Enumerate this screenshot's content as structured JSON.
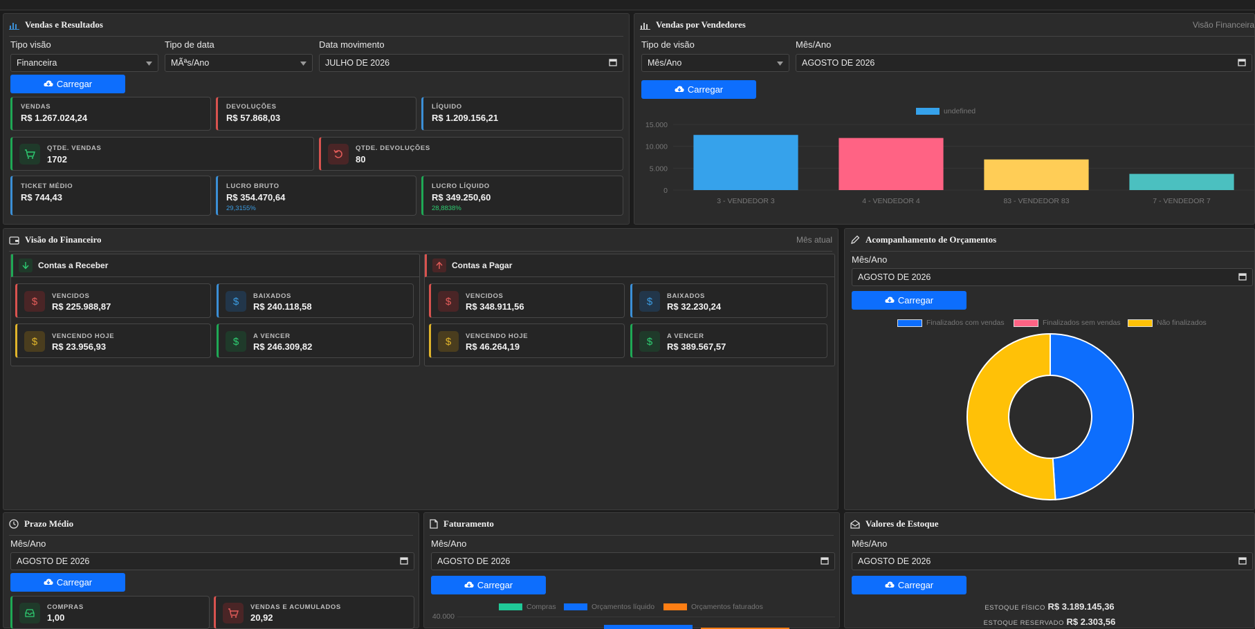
{
  "vendas": {
    "title": "Vendas e Resultados",
    "tipo_visao_label": "Tipo visão",
    "tipo_visao_value": "Financeira",
    "tipo_data_label": "Tipo de data",
    "tipo_data_value": "MÃªs/Ano",
    "data_mov_label": "Data movimento",
    "data_mov_value": "JULHO DE 2026",
    "button": "Carregar",
    "kpi": {
      "vendas_k": "VENDAS",
      "vendas_v": "R$ 1.267.024,24",
      "devol_k": "DEVOLUÇÕES",
      "devol_v": "R$ 57.868,03",
      "liquido_k": "LÍQUIDO",
      "liquido_v": "R$ 1.209.156,21",
      "qtde_vendas_k": "QTDE. VENDAS",
      "qtde_vendas_v": "1702",
      "qtde_devol_k": "QTDE. DEVOLUÇÕES",
      "qtde_devol_v": "80",
      "ticket_k": "TICKET MÉDIO",
      "ticket_v": "R$ 744,43",
      "lucro_bruto_k": "LUCRO BRUTO",
      "lucro_bruto_v": "R$ 354.470,64",
      "lucro_bruto_p": "29,3155%",
      "lucro_liq_k": "LUCRO LÍQUIDO",
      "lucro_liq_v": "R$ 349.250,60",
      "lucro_liq_p": "28,8838%"
    }
  },
  "vendedores": {
    "title": "Vendas por Vendedores",
    "right": "Visão Financeira",
    "tipo_visao_label": "Tipo de visão",
    "tipo_visao_value": "Mês/Ano",
    "mes_label": "Mês/Ano",
    "mes_value": "AGOSTO DE 2026",
    "button": "Carregar",
    "legend": "undefined",
    "y_ticks": [
      "15.000",
      "10.000",
      "5.000",
      "0"
    ]
  },
  "chart_data": {
    "type": "bar",
    "categories": [
      "3 - VENDEDOR 3",
      "4 - VENDEDOR 4",
      "83 - VENDEDOR 83",
      "7 - VENDEDOR 7"
    ],
    "values": [
      12600,
      11900,
      7000,
      3700
    ],
    "colors": [
      "#36a2eb",
      "#ff6384",
      "#ffcd56",
      "#4bc0c0"
    ],
    "series": [
      {
        "name": "undefined",
        "values": [
          12600,
          11900,
          7000,
          3700
        ]
      }
    ],
    "ylim": [
      0,
      15000
    ],
    "legend": "top"
  },
  "financeiro": {
    "title": "Visão do Financeiro",
    "right": "Mês atual",
    "receber": {
      "title": "Contas a Receber",
      "vencidos_k": "VENCIDOS",
      "vencidos_v": "R$ 225.988,87",
      "baixados_k": "BAIXADOS",
      "baixados_v": "R$ 240.118,58",
      "hoje_k": "VENCENDO HOJE",
      "hoje_v": "R$ 23.956,93",
      "avencer_k": "A VENCER",
      "avencer_v": "R$ 246.309,82"
    },
    "pagar": {
      "title": "Contas a Pagar",
      "vencidos_k": "VENCIDOS",
      "vencidos_v": "R$ 348.911,56",
      "baixados_k": "BAIXADOS",
      "baixados_v": "R$ 32.230,24",
      "hoje_k": "VENCENDO HOJE",
      "hoje_v": "R$ 46.264,19",
      "avencer_k": "A VENCER",
      "avencer_v": "R$ 389.567,57"
    }
  },
  "orcamentos": {
    "title": "Acompanhamento de Orçamentos",
    "mes_label": "Mês/Ano",
    "mes_value": "AGOSTO DE 2026",
    "button": "Carregar",
    "legend": [
      "Finalizados com vendas",
      "Finalizados sem vendas",
      "Não finalizados"
    ],
    "colors": [
      "#0d6efd",
      "#ff6384",
      "#ffc107"
    ],
    "values": [
      49,
      0,
      51
    ]
  },
  "prazo": {
    "title": "Prazo Médio",
    "mes_label": "Mês/Ano",
    "mes_value": "AGOSTO DE 2026",
    "button": "Carregar",
    "compras_k": "COMPRAS",
    "compras_v": "1,00",
    "vendas_k": "VENDAS E ACUMULADOS",
    "vendas_v": "20,92"
  },
  "faturamento": {
    "title": "Faturamento",
    "mes_label": "Mês/Ano",
    "mes_value": "AGOSTO DE 2026",
    "button": "Carregar",
    "legend": [
      "Compras",
      "Orçamentos líquido",
      "Orçamentos faturados"
    ],
    "colors": [
      "#20c997",
      "#0d6efd",
      "#fd7e14"
    ],
    "y_tick": "40.000"
  },
  "estoque": {
    "title": "Valores de Estoque",
    "mes_label": "Mês/Ano",
    "mes_value": "AGOSTO DE 2026",
    "button": "Carregar",
    "fisico_k": "ESTOQUE FÍSICO",
    "fisico_v": "R$ 3.189.145,36",
    "reservado_k": "ESTOQUE RESERVADO",
    "reservado_v": "R$ 2.303,56"
  }
}
